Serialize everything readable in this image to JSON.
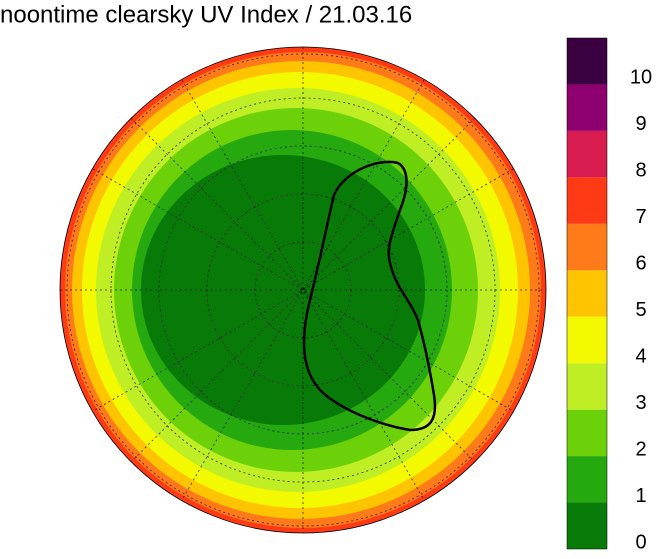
{
  "title": "noontime clearsky UV Index / 21.03.16",
  "colorbar": {
    "ticks": [
      0,
      1,
      2,
      3,
      4,
      5,
      6,
      7,
      8,
      9,
      10
    ],
    "colors": [
      "#077a07",
      "#26a80f",
      "#6dd10a",
      "#c0ee25",
      "#f3fa00",
      "#ffc400",
      "#ff7a18",
      "#ff3a14",
      "#d81c50",
      "#8e0070",
      "#3a0040"
    ]
  }
}
